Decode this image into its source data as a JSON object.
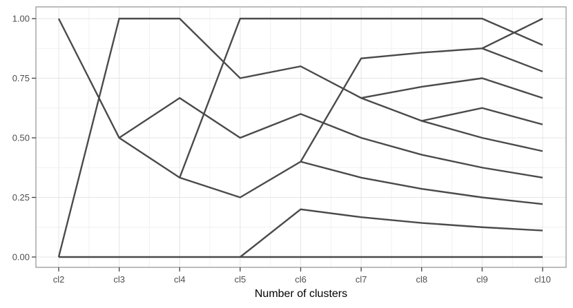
{
  "figure": {
    "xlabel": "Number of clusters"
  },
  "colors": {
    "line": "#4a4a4a",
    "grid_major": "#e4e4e4",
    "grid_minor": "#f1f1f1",
    "panel_border": "#999999",
    "tick_mark": "#404040",
    "tick_label": "#4d4d4d",
    "axis_title": "#000000",
    "background": "#ffffff"
  },
  "chart_data": {
    "type": "line",
    "title": "",
    "xlabel": "Number of clusters",
    "ylabel": "",
    "x_values": [
      2,
      3,
      4,
      5,
      6,
      7,
      8,
      9,
      10
    ],
    "x_tick_labels": [
      "cl2",
      "cl3",
      "cl4",
      "cl5",
      "cl6",
      "cl7",
      "cl8",
      "cl9",
      "cl10"
    ],
    "y_ticks": [
      0.0,
      0.25,
      0.5,
      0.75,
      1.0
    ],
    "y_tick_labels": [
      "0.00",
      "0.25",
      "0.50",
      "0.75",
      "1.00"
    ],
    "y_minor_ticks": [
      0.125,
      0.375,
      0.625,
      0.875
    ],
    "ylim": [
      0,
      1
    ],
    "grid": "major+minor",
    "legend": "none",
    "series": [
      {
        "name": "line-1",
        "x": [
          2,
          3,
          4,
          5,
          6,
          7,
          8,
          9,
          10
        ],
        "y": [
          1.0,
          0.5,
          0.333,
          0.25,
          0.4,
          0.833,
          0.857,
          0.875,
          1.0
        ]
      },
      {
        "name": "line-2",
        "x": [
          2,
          3,
          4,
          5,
          6,
          7,
          8,
          9,
          10
        ],
        "y": [
          0.0,
          1.0,
          1.0,
          0.75,
          0.8,
          0.667,
          0.571,
          0.625,
          0.556
        ]
      },
      {
        "name": "line-3",
        "x": [
          3,
          4,
          5,
          6,
          7,
          8,
          9,
          10
        ],
        "y": [
          0.5,
          0.667,
          0.5,
          0.6,
          0.5,
          0.429,
          0.375,
          0.333
        ]
      },
      {
        "name": "line-4",
        "x": [
          4,
          5,
          6,
          7,
          8,
          9,
          10
        ],
        "y": [
          0.333,
          1.0,
          1.0,
          1.0,
          1.0,
          1.0,
          0.889
        ]
      },
      {
        "name": "line-5",
        "x": [
          5,
          6,
          7,
          8,
          9,
          10
        ],
        "y": [
          0.0,
          0.2,
          0.167,
          0.143,
          0.125,
          0.111
        ]
      },
      {
        "name": "line-6",
        "x": [
          6,
          7,
          8,
          9,
          10
        ],
        "y": [
          0.4,
          0.333,
          0.286,
          0.25,
          0.222
        ]
      },
      {
        "name": "line-7",
        "x": [
          7,
          8,
          9,
          10
        ],
        "y": [
          0.667,
          0.714,
          0.75,
          0.667
        ]
      },
      {
        "name": "line-8",
        "x": [
          8,
          9,
          10
        ],
        "y": [
          0.571,
          0.5,
          0.444
        ]
      },
      {
        "name": "line-9",
        "x": [
          9,
          10
        ],
        "y": [
          0.875,
          0.778
        ]
      },
      {
        "name": "line-10",
        "x": [
          2,
          10
        ],
        "y": [
          0.0,
          0.0
        ]
      }
    ]
  }
}
